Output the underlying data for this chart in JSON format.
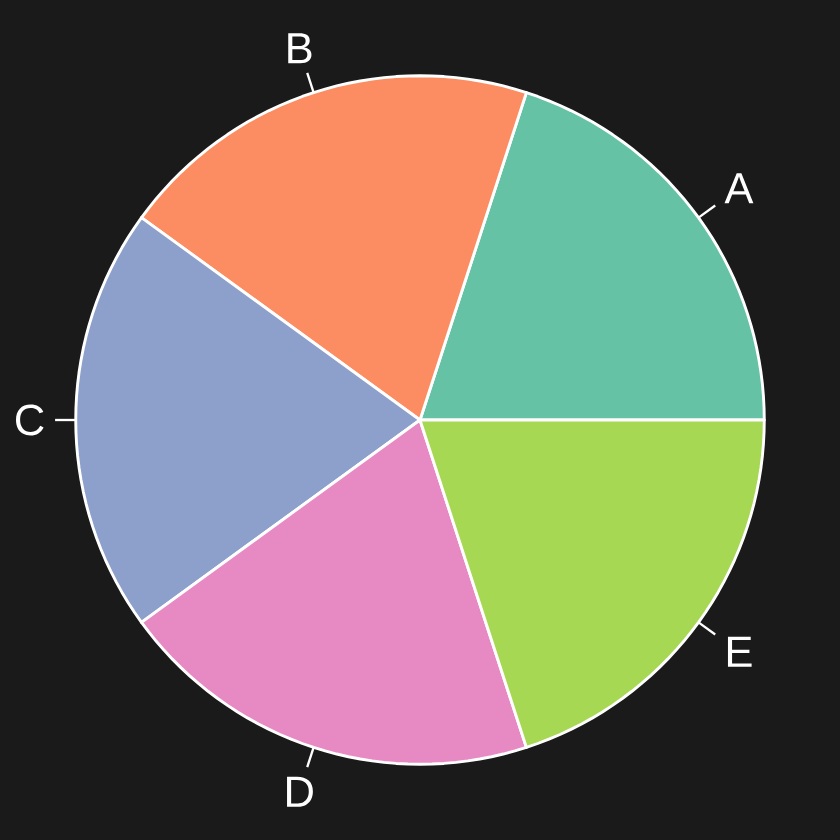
{
  "chart_data": {
    "type": "pie",
    "categories": [
      "A",
      "B",
      "C",
      "D",
      "E"
    ],
    "values": [
      20,
      20,
      20,
      20,
      20
    ],
    "colors": [
      "#66c2a5",
      "#fc8d62",
      "#8da0cb",
      "#e78ac3",
      "#a6d854"
    ]
  }
}
